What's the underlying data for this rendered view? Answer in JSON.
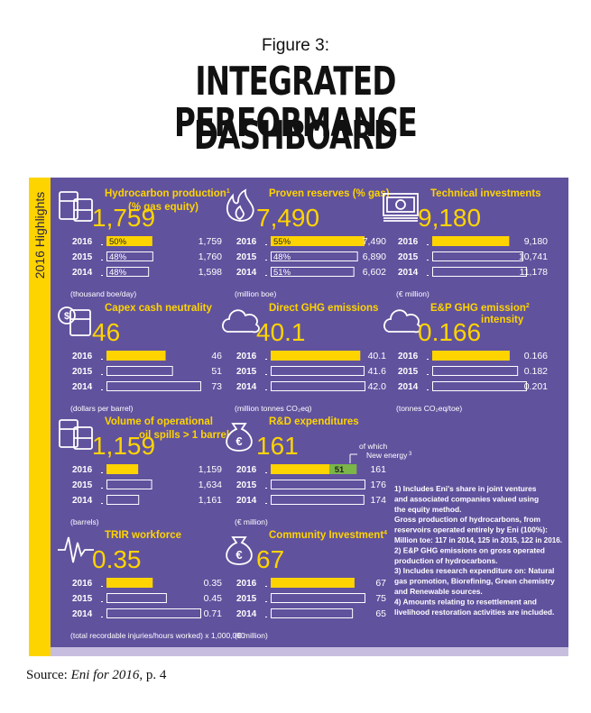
{
  "figure_label": "Figure 3:",
  "title_line1": "INTEGRATED PERFORMANCE",
  "title_line2": "DASHBOARD",
  "sidebar_label": "2016 Highlights",
  "colors": {
    "panel": "#61529e",
    "accent": "#fed400",
    "green": "#7ab648"
  },
  "source": {
    "prefix": "Source: ",
    "italic": "Eni for 2016",
    "suffix": ", p. 4"
  },
  "years": [
    "2016",
    "2015",
    "2014"
  ],
  "chart_data": [
    {
      "type": "bar",
      "icon": "oil-barrels-icon",
      "title": "Hydrocarbon production",
      "sup": "1",
      "title2": "(% gas equity)",
      "headline": "1,759",
      "categories": [
        "2016",
        "2015",
        "2014"
      ],
      "values": [
        1759,
        1760,
        1598
      ],
      "labels": [
        "1,759",
        "1,760",
        "1,598"
      ],
      "pct": [
        "50%",
        "48%",
        "48%"
      ],
      "pct_values": [
        50,
        48,
        48
      ],
      "unit": "(thousand boe/day)",
      "xlim": [
        0,
        3600
      ]
    },
    {
      "type": "bar",
      "icon": "flame-icon",
      "title": "Proven reserves (% gas)",
      "sup": "",
      "title2": "",
      "headline": "7,490",
      "categories": [
        "2016",
        "2015",
        "2014"
      ],
      "values": [
        7490,
        6890,
        6602
      ],
      "labels": [
        "7,490",
        "6,890",
        "6,602"
      ],
      "pct": [
        "55%",
        "48%",
        "51%"
      ],
      "pct_values": [
        55,
        48,
        51
      ],
      "unit": "(million boe)",
      "xlim": [
        0,
        7490
      ]
    },
    {
      "type": "bar",
      "icon": "banknotes-icon",
      "title": "Technical investments",
      "sup": "",
      "title2": "",
      "headline": "9,180",
      "categories": [
        "2016",
        "2015",
        "2014"
      ],
      "values": [
        9180,
        10741,
        11178
      ],
      "labels": [
        "9,180",
        "10,741",
        "11,178"
      ],
      "unit": "(€ million)",
      "xlim": [
        0,
        11178
      ]
    },
    {
      "type": "bar",
      "icon": "dollar-barrel-icon",
      "title": "Capex cash neutrality",
      "sup": "",
      "title2": "",
      "headline": "46",
      "categories": [
        "2016",
        "2015",
        "2014"
      ],
      "values": [
        46,
        51,
        73
      ],
      "labels": [
        "46",
        "51",
        "73"
      ],
      "unit": "(dollars per barrel)",
      "xlim": [
        0,
        73
      ]
    },
    {
      "type": "bar",
      "icon": "cloud-icon",
      "title": "Direct GHG emissions",
      "sup": "",
      "title2": "",
      "headline": "40.1",
      "categories": [
        "2016",
        "2015",
        "2014"
      ],
      "values": [
        40.1,
        41.6,
        42.0
      ],
      "labels": [
        "40.1",
        "41.6",
        "42.0"
      ],
      "unit": "(million tonnes CO₂eq)",
      "xlim": [
        0,
        42
      ]
    },
    {
      "type": "bar",
      "icon": "cloud-icon",
      "title": "E&P GHG emission",
      "sup": "2",
      "title2": "intensity",
      "headline": "0.166",
      "categories": [
        "2016",
        "2015",
        "2014"
      ],
      "values": [
        0.166,
        0.182,
        0.201
      ],
      "labels": [
        "0.166",
        "0.182",
        "0.201"
      ],
      "unit": "(tonnes CO₂eq/toe)",
      "xlim": [
        0,
        0.201
      ]
    },
    {
      "type": "bar",
      "icon": "oil-barrels-icon",
      "title": "Volume of operational",
      "sup": "",
      "title2": "oil spills > 1 barrel",
      "headline": "1,159",
      "categories": [
        "2016",
        "2015",
        "2014"
      ],
      "values": [
        1159,
        1634,
        1161
      ],
      "labels": [
        "1,159",
        "1,634",
        "1,161"
      ],
      "unit": "(barrels)",
      "xlim": [
        0,
        3430
      ]
    },
    {
      "type": "bar",
      "icon": "euro-bag-icon",
      "title": "R&D expenditures",
      "sup": "",
      "title2": "",
      "headline": "161",
      "categories": [
        "2016",
        "2015",
        "2014"
      ],
      "values": [
        161,
        176,
        174
      ],
      "labels": [
        "161",
        "176",
        "174"
      ],
      "sub_label": "51",
      "sub_value": 51,
      "callout": "of which",
      "callout2": "New energy",
      "callout_sup": "3",
      "unit": "(€ million)",
      "xlim": [
        0,
        176
      ]
    },
    {
      "type": "bar",
      "icon": "heartbeat-icon",
      "title": "TRIR workforce",
      "sup": "",
      "title2": "",
      "headline": "0.35",
      "categories": [
        "2016",
        "2015",
        "2014"
      ],
      "values": [
        0.35,
        0.45,
        0.71
      ],
      "labels": [
        "0.35",
        "0.45",
        "0.71"
      ],
      "unit": "(total recordable injuries/hours worked) x 1,000,000",
      "xlim": [
        0,
        0.71
      ]
    },
    {
      "type": "bar",
      "icon": "euro-bag-icon",
      "title": "Community Investment",
      "sup": "4",
      "title2": "",
      "headline": "67",
      "categories": [
        "2016",
        "2015",
        "2014"
      ],
      "values": [
        67,
        75,
        65
      ],
      "labels": [
        "67",
        "75",
        "65"
      ],
      "unit": "(€ million)",
      "xlim": [
        0,
        75
      ]
    }
  ],
  "footnotes": [
    "1) Includes Eni's share in joint ventures",
    "and associated companies valued using",
    "the equity method.",
    "Gross production of hydrocarbons, from",
    "reservoirs operated entirely by Eni (100%):",
    "Million toe: 117 in 2014, 125 in 2015, 122 in 2016.",
    "2) E&P GHG emissions on gross operated",
    "production of hydrocarbons.",
    "3) Includes research expenditure on: Natural",
    "gas promotion, Biorefining, Green chemistry",
    "and Renewable sources.",
    "4) Amounts relating to resettlement and",
    "livelihood restoration activities are included."
  ]
}
